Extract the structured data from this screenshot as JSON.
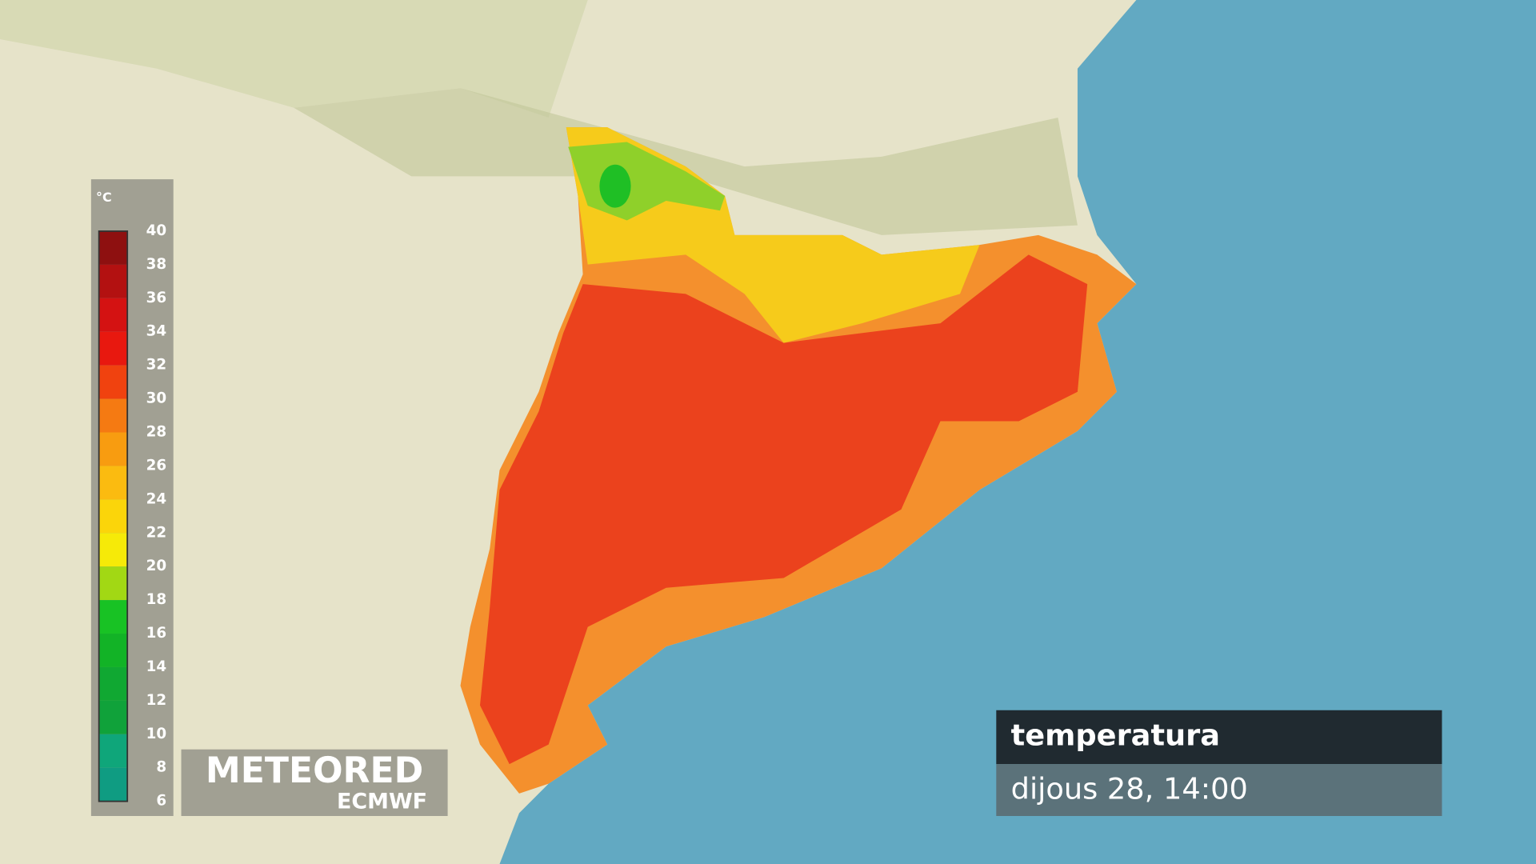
{
  "legend": {
    "unit": "°C",
    "ticks": [
      40,
      38,
      36,
      34,
      32,
      30,
      28,
      26,
      24,
      22,
      20,
      18,
      16,
      14,
      12,
      10,
      8,
      6
    ],
    "colors": [
      "#8e1010",
      "#b31111",
      "#d41212",
      "#e8180f",
      "#f0420f",
      "#f57a12",
      "#f89c10",
      "#fbbb10",
      "#fbd50a",
      "#f6ea08",
      "#a2d814",
      "#18c224",
      "#12b326",
      "#10a832",
      "#10a23a",
      "#0fa67a",
      "#0f9c82"
    ]
  },
  "logo": {
    "brand": "METEORED",
    "source": "ECMWF"
  },
  "info": {
    "title": "temperatura",
    "time": "dijous 28, 14:00"
  }
}
